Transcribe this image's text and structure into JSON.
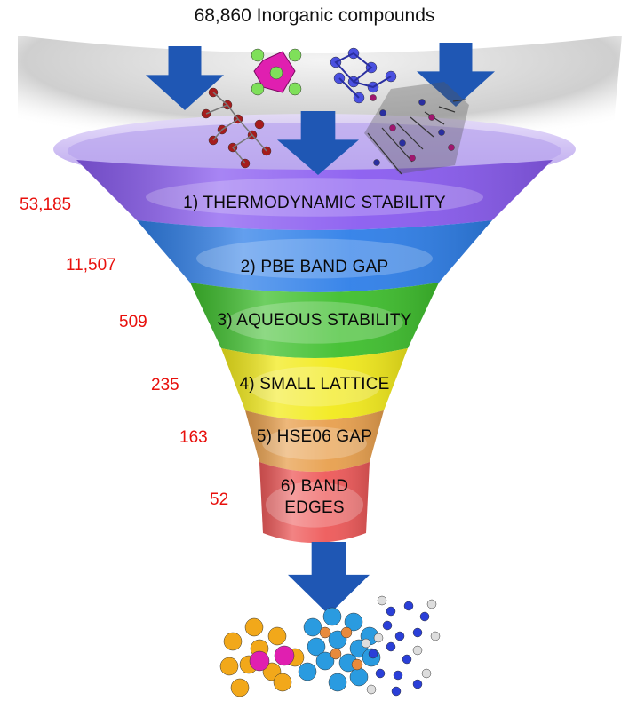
{
  "title": "68,860 Inorganic compounds",
  "stages": [
    {
      "label": "1) THERMODYNAMIC STABILITY",
      "count": "53,185",
      "color": "#8a5cf0"
    },
    {
      "label": "2) PBE BAND GAP",
      "count": "11,507",
      "color": "#2f7fe8"
    },
    {
      "label": "3) AQUEOUS STABILITY",
      "count": "509",
      "color": "#3fbf2e"
    },
    {
      "label": "4) SMALL LATTICE",
      "count": "235",
      "color": "#f2ea1c"
    },
    {
      "label": "5) HSE06 GAP",
      "count": "163",
      "color": "#e8a04e"
    },
    {
      "label": "6) BAND EDGES",
      "count": "52",
      "color": "#ee5a5a"
    }
  ],
  "icons": {
    "arrow": "blue-down-arrow-icon",
    "input_structures": "crystal-structure-icon",
    "output_structures": "candidate-structure-icon"
  },
  "colors": {
    "arrow": "#1f57b4",
    "counts": "#e8100c",
    "rim": "#c8b8f4"
  }
}
